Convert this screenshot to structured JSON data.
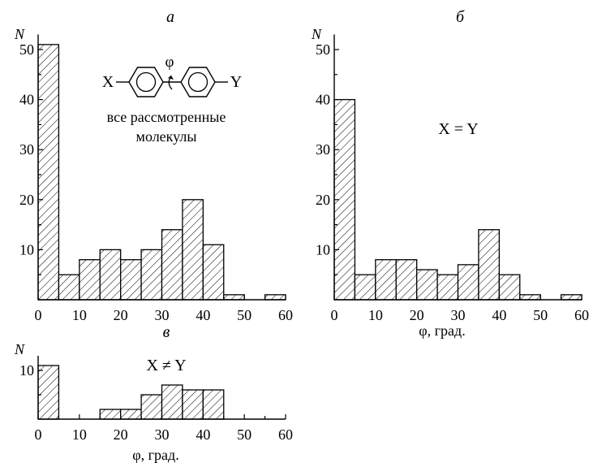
{
  "chart_data": [
    {
      "type": "bar",
      "panel_label": "а",
      "ylabel": "N",
      "xlabel": "",
      "annotation": [
        "все рассмотренные",
        "молекулы"
      ],
      "x_bin_edges": [
        0,
        5,
        10,
        15,
        20,
        25,
        30,
        35,
        40,
        45,
        50,
        55,
        60
      ],
      "values": [
        51,
        5,
        8,
        10,
        8,
        10,
        14,
        20,
        11,
        1,
        0,
        1
      ],
      "xlim": [
        0,
        60
      ],
      "ylim": [
        0,
        53
      ],
      "x_ticks": [
        "0",
        "10",
        "20",
        "30",
        "40",
        "50",
        "60"
      ],
      "y_ticks": [
        "10",
        "20",
        "30",
        "40",
        "50"
      ],
      "grid": false
    },
    {
      "type": "bar",
      "panel_label": "б",
      "ylabel": "N",
      "xlabel": "φ, град.",
      "annotation": "X = Y",
      "x_bin_edges": [
        0,
        5,
        10,
        15,
        20,
        25,
        30,
        35,
        40,
        45,
        50,
        55,
        60
      ],
      "values": [
        40,
        5,
        8,
        8,
        6,
        5,
        7,
        14,
        5,
        1,
        0,
        1
      ],
      "xlim": [
        0,
        60
      ],
      "ylim": [
        0,
        53
      ],
      "x_ticks": [
        "0",
        "10",
        "20",
        "30",
        "40",
        "50",
        "60"
      ],
      "y_ticks": [
        "10",
        "20",
        "30",
        "40",
        "50"
      ],
      "grid": false
    },
    {
      "type": "bar",
      "panel_label": "в",
      "ylabel": "N",
      "xlabel": "φ, град.",
      "annotation": "X ≠ Y",
      "x_bin_edges": [
        0,
        5,
        10,
        15,
        20,
        25,
        30,
        35,
        40,
        45,
        50,
        55,
        60
      ],
      "values": [
        11,
        0,
        0,
        2,
        2,
        5,
        7,
        6,
        6,
        0,
        0,
        0
      ],
      "xlim": [
        0,
        60
      ],
      "ylim": [
        0,
        13
      ],
      "x_ticks": [
        "0",
        "10",
        "20",
        "30",
        "40",
        "50",
        "60"
      ],
      "y_ticks": [
        "10"
      ],
      "grid": false
    }
  ],
  "molecule": {
    "left_substituent": "X",
    "right_substituent": "Y",
    "angle_symbol": "φ"
  }
}
